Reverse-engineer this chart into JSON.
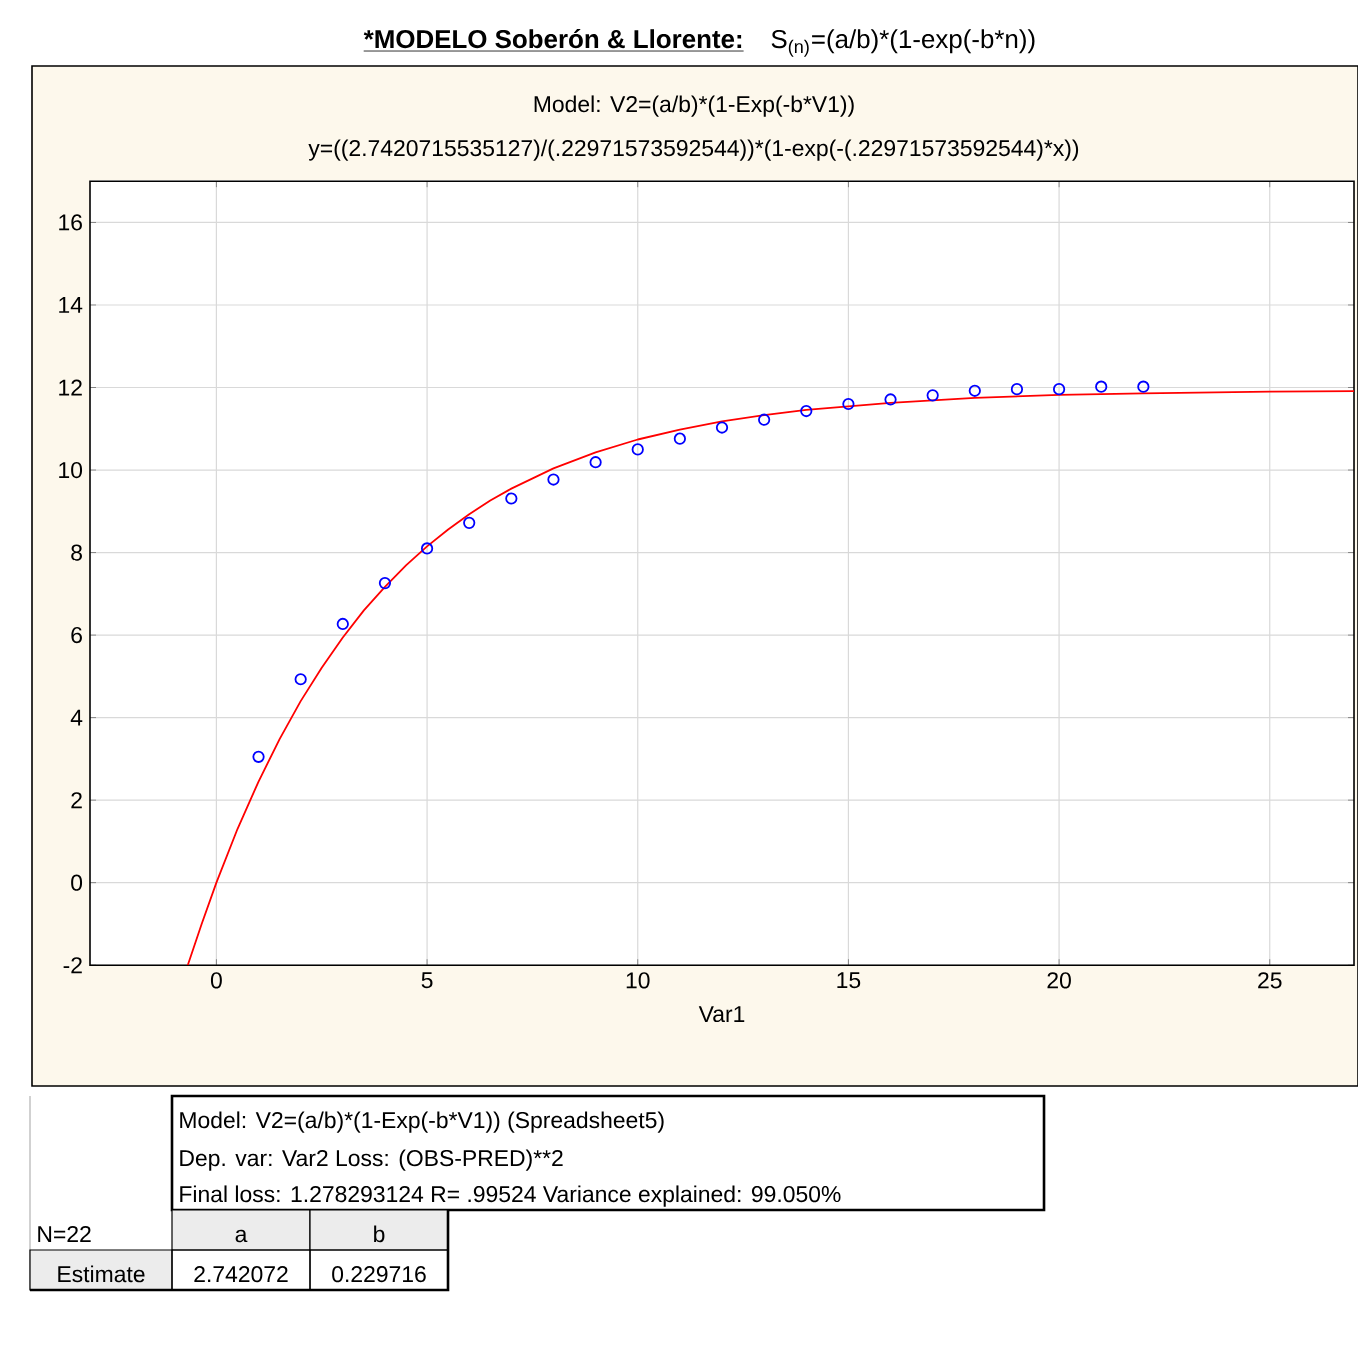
{
  "chart_data": {
    "type": "scatter",
    "title": "*MODELO Soberón & Llorente:",
    "subtitle": "Model: V2=(a/b)*(1-Exp(-b*V1))",
    "xlabel": "Var1",
    "xlim": [
      -3,
      27
    ],
    "ylim": [
      -2,
      17
    ],
    "xticks": [
      0,
      5,
      10,
      15,
      20,
      25
    ],
    "yticks": [
      -2,
      0,
      2,
      4,
      6,
      8,
      10,
      12,
      14,
      16
    ],
    "grid": true,
    "series": [
      {
        "marker": "circle",
        "color": "#0000ff",
        "x": [
          1,
          2,
          3,
          4,
          5,
          6,
          7,
          8,
          9,
          10,
          11,
          12,
          13,
          14,
          15,
          16,
          17,
          18,
          19,
          20,
          21,
          22
        ],
        "values": [
          3.05,
          4.93,
          6.27,
          7.26,
          8.1,
          8.72,
          9.31,
          9.77,
          10.19,
          10.5,
          10.76,
          11.03,
          11.22,
          11.43,
          11.6,
          11.71,
          11.81,
          11.92,
          11.96,
          11.96,
          12.02,
          12.02
        ]
      },
      {
        "type": "line",
        "marker": "none",
        "line_style": "solid",
        "color": "#ff0000",
        "x": [
          -0.68,
          -0.35,
          0,
          0.5,
          1,
          1.5,
          2,
          2.5,
          3,
          3.5,
          4,
          4.5,
          5,
          5.5,
          6,
          6.5,
          7,
          8,
          9,
          10,
          11,
          12,
          13,
          14,
          16,
          18,
          20,
          22,
          25,
          27
        ],
        "values": [
          -2,
          -1,
          0,
          1.3,
          2.45,
          3.48,
          4.4,
          5.21,
          5.94,
          6.6,
          7.17,
          7.69,
          8.15,
          8.56,
          8.93,
          9.26,
          9.55,
          10.04,
          10.43,
          10.74,
          10.98,
          11.18,
          11.33,
          11.46,
          11.63,
          11.75,
          11.82,
          11.86,
          11.9,
          11.91
        ]
      }
    ],
    "annotations": [
      "S$_{(n)}$=(a/b)*(1-exp(-b*n))",
      "y=((2.7420715535127)/(.22971573592544))*(1-exp(-(.22971573592544)*x))",
      "Model: V2=(a/b)*(1-Exp(-b*V1)) (Spreadsheet5)",
      "Dep. var: Var2 Loss: (OBS-PRED)**2",
      "Final loss: 1.278293124 R= .99524 Variance explained: 99.050%",
      "N=22",
      "a",
      "b",
      "Estimate",
      "2.742072",
      "0.229716"
    ]
  }
}
